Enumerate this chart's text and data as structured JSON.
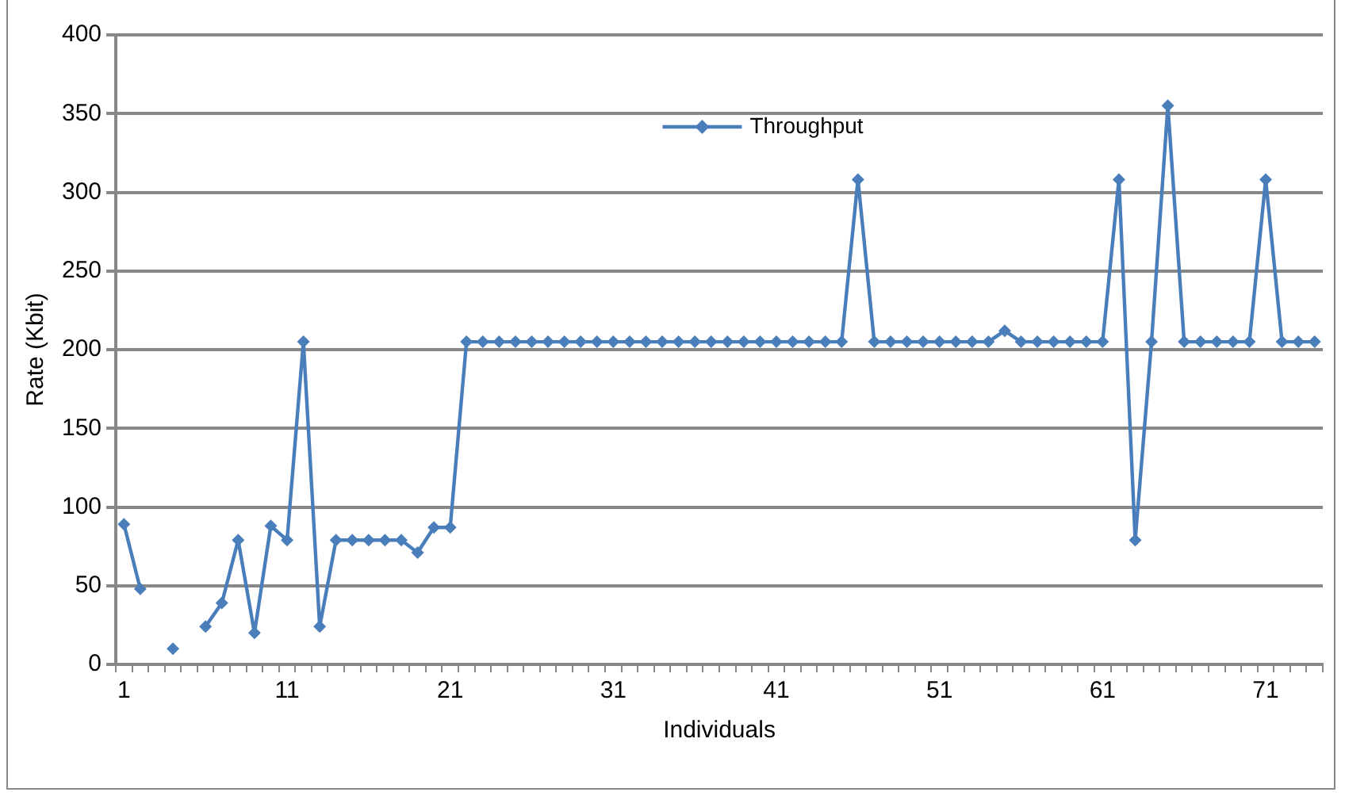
{
  "chart_data": {
    "type": "line",
    "xlabel": "Individuals",
    "ylabel": "Rate (Kbit)",
    "categories": [
      "1",
      null,
      null,
      null,
      null,
      null,
      null,
      null,
      null,
      null,
      "11",
      null,
      null,
      null,
      null,
      null,
      null,
      null,
      null,
      null,
      "21",
      null,
      null,
      null,
      null,
      null,
      null,
      null,
      null,
      null,
      "31",
      null,
      null,
      null,
      null,
      null,
      null,
      null,
      null,
      null,
      "41",
      null,
      null,
      null,
      null,
      null,
      null,
      null,
      null,
      null,
      "51",
      null,
      null,
      null,
      null,
      null,
      null,
      null,
      null,
      null,
      "61",
      null,
      null,
      null,
      null,
      null,
      null,
      null,
      null,
      null,
      "71",
      null,
      null,
      null
    ],
    "series": [
      {
        "name": "Throughput",
        "color": "#4a7ebb",
        "values": [
          89,
          48,
          null,
          10,
          null,
          24,
          39,
          79,
          20,
          88,
          79,
          205,
          24,
          79,
          79,
          79,
          79,
          79,
          71,
          87,
          87,
          205,
          205,
          205,
          205,
          205,
          205,
          205,
          205,
          205,
          205,
          205,
          205,
          205,
          205,
          205,
          205,
          205,
          205,
          205,
          205,
          205,
          205,
          205,
          205,
          308,
          205,
          205,
          205,
          205,
          205,
          205,
          205,
          205,
          212,
          205,
          205,
          205,
          205,
          205,
          205,
          308,
          79,
          205,
          355,
          205,
          205,
          205,
          205,
          205,
          308,
          205,
          205,
          205
        ]
      }
    ],
    "ylim": [
      0,
      400
    ],
    "yticks": [
      0,
      50,
      100,
      150,
      200,
      250,
      300,
      350,
      400
    ],
    "grid": "y",
    "legend": "top",
    "marker": "diamond",
    "line_style": "solid"
  }
}
